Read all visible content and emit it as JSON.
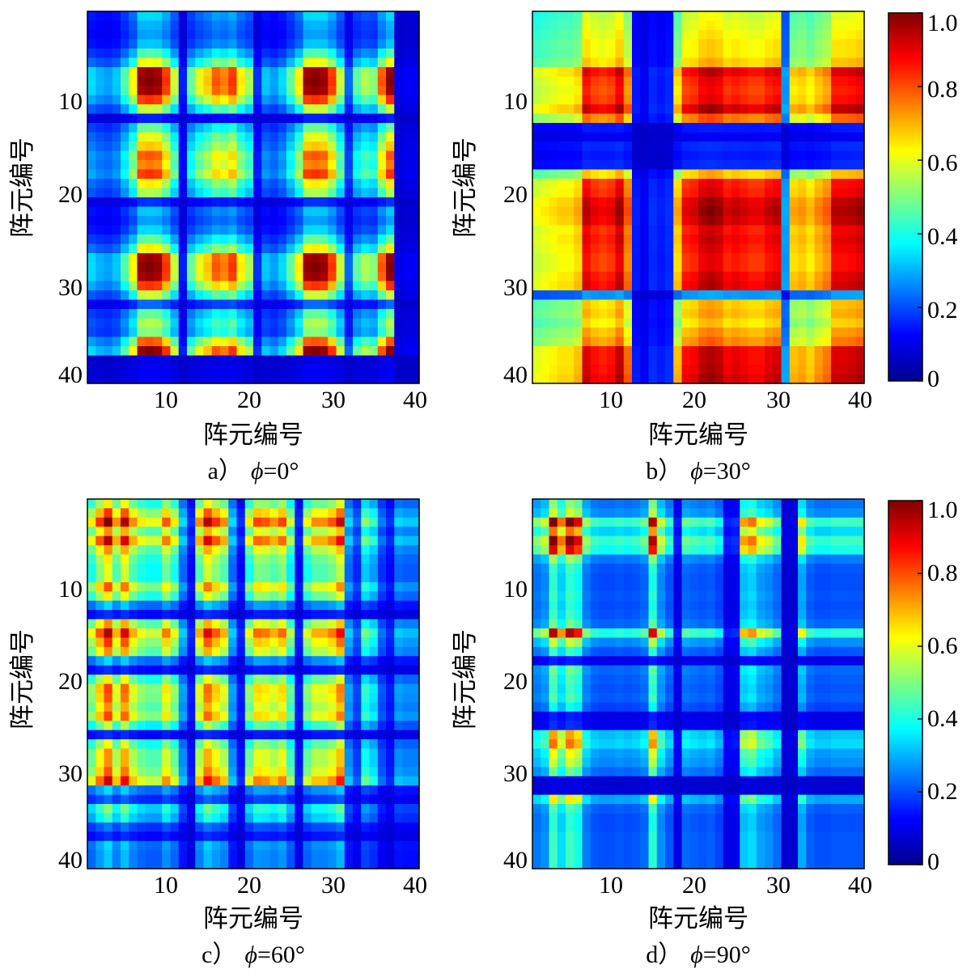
{
  "chart_data": [
    {
      "type": "heatmap",
      "caption_letter": "a）",
      "caption_symbol": "ϕ",
      "caption_value": "=0°",
      "xlabel": "阵元编号",
      "ylabel": "阵元编号",
      "x_ticks": [
        "10",
        "20",
        "30",
        "40"
      ],
      "y_ticks": [
        "10",
        "20",
        "30",
        "40"
      ],
      "xlim": [
        1,
        40
      ],
      "ylim": [
        1,
        40
      ],
      "matrix_size": 40,
      "weights": [
        0.3,
        0.26,
        0.24,
        0.28,
        0.42,
        0.6,
        0.98,
        1.0,
        0.98,
        0.82,
        0.55,
        0.1,
        0.45,
        0.58,
        0.66,
        0.78,
        0.74,
        0.82,
        0.62,
        0.52,
        0.12,
        0.28,
        0.24,
        0.3,
        0.44,
        0.62,
        0.98,
        1.0,
        0.98,
        0.82,
        0.55,
        0.18,
        0.44,
        0.52,
        0.48,
        0.78,
        1.0,
        0.04,
        0.06,
        0.06
      ],
      "colorbar": false
    },
    {
      "type": "heatmap",
      "caption_letter": "b）",
      "caption_symbol": "ϕ",
      "caption_value": "=30°",
      "xlabel": "阵元编号",
      "ylabel": "阵元编号",
      "x_ticks": [
        "10",
        "20",
        "30",
        "40"
      ],
      "y_ticks": [
        "10",
        "20",
        "30",
        "40"
      ],
      "xlim": [
        1,
        40
      ],
      "ylim": [
        1,
        40
      ],
      "matrix_size": 40,
      "weights": [
        0.6,
        0.62,
        0.64,
        0.66,
        0.66,
        0.7,
        0.95,
        0.9,
        0.88,
        0.9,
        0.98,
        0.8,
        0.1,
        0.06,
        0.12,
        0.1,
        0.12,
        0.7,
        0.9,
        0.92,
        0.98,
        1.0,
        0.98,
        0.92,
        0.94,
        0.92,
        0.9,
        0.9,
        0.94,
        0.96,
        0.25,
        0.7,
        0.72,
        0.68,
        0.74,
        0.78,
        0.95,
        0.95,
        0.96,
        0.98
      ],
      "colorbar": true,
      "colorbar_ticks": [
        "1.0",
        "0.8",
        "0.6",
        "0.4",
        "0.2",
        "0"
      ]
    },
    {
      "type": "heatmap",
      "caption_letter": "c）",
      "caption_symbol": "ϕ",
      "caption_value": "=60°",
      "xlabel": "阵元编号",
      "ylabel": "阵元编号",
      "x_ticks": [
        "10",
        "20",
        "30",
        "40"
      ],
      "y_ticks": [
        "10",
        "20",
        "30",
        "40"
      ],
      "xlim": [
        1,
        40
      ],
      "ylim": [
        1,
        40
      ],
      "matrix_size": 40,
      "weights": [
        0.62,
        0.82,
        1.0,
        0.72,
        0.95,
        0.72,
        0.62,
        0.58,
        0.58,
        0.78,
        0.62,
        0.3,
        0.12,
        0.72,
        0.95,
        0.82,
        0.72,
        0.3,
        0.12,
        0.62,
        0.8,
        0.78,
        0.72,
        0.8,
        0.55,
        0.12,
        0.6,
        0.72,
        0.72,
        0.78,
        0.92,
        0.3,
        0.18,
        0.48,
        0.4,
        0.2,
        0.12,
        0.3,
        0.28,
        0.28
      ],
      "colorbar": false
    },
    {
      "type": "heatmap",
      "caption_letter": "d）",
      "caption_symbol": "ϕ",
      "caption_value": "=90°",
      "xlabel": "阵元编号",
      "ylabel": "阵元编号",
      "x_ticks": [
        "10",
        "20",
        "30",
        "40"
      ],
      "y_ticks": [
        "10",
        "20",
        "30",
        "40"
      ],
      "xlim": [
        1,
        40
      ],
      "ylim": [
        1,
        40
      ],
      "matrix_size": 40,
      "weights": [
        0.48,
        0.55,
        1.0,
        0.75,
        1.0,
        0.9,
        0.5,
        0.4,
        0.38,
        0.38,
        0.4,
        0.38,
        0.4,
        0.45,
        0.95,
        0.55,
        0.4,
        0.1,
        0.45,
        0.42,
        0.4,
        0.42,
        0.35,
        0.1,
        0.12,
        0.7,
        0.75,
        0.6,
        0.55,
        0.45,
        0.04,
        0.04,
        0.62,
        0.42,
        0.38,
        0.38,
        0.4,
        0.4,
        0.4,
        0.4
      ],
      "colorbar": true,
      "colorbar_ticks": [
        "1.0",
        "0.8",
        "0.6",
        "0.4",
        "0.2",
        "0"
      ]
    }
  ]
}
